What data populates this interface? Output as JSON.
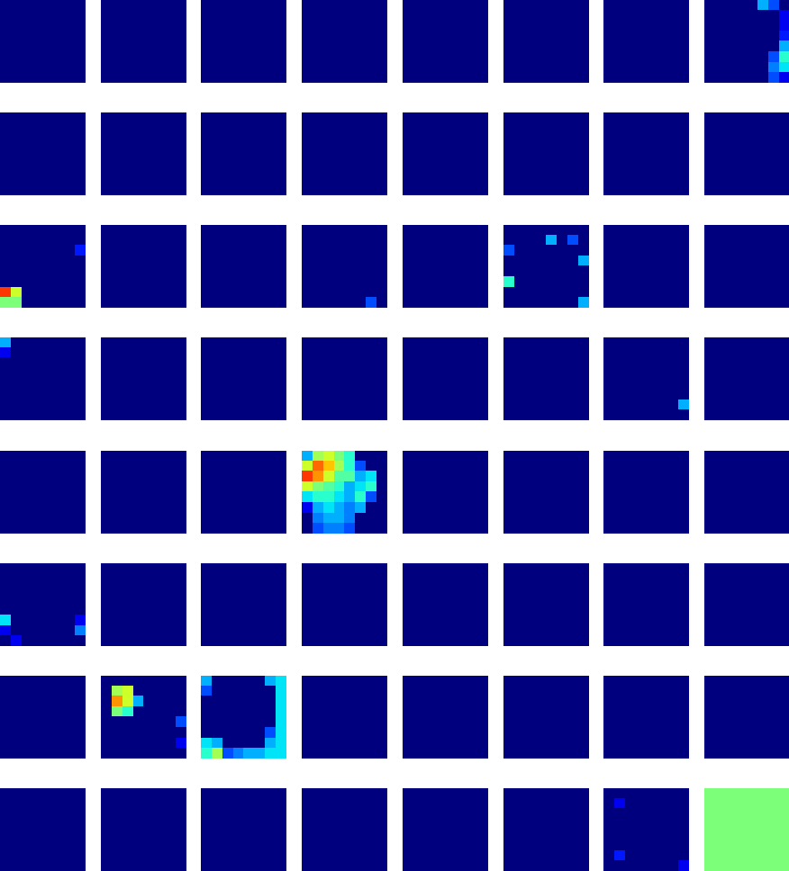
{
  "chart_data": {
    "type": "heatmap_grid",
    "color": "jet",
    "zlim": [
      0,
      1
    ],
    "tick_labels": false,
    "rows": 8,
    "cols": 8,
    "panels": [
      {
        "cells": [
          [
            0
          ]
        ]
      },
      {
        "cells": [
          [
            0
          ]
        ]
      },
      {
        "cells": [
          [
            0
          ]
        ]
      },
      {
        "cells": [
          [
            0
          ]
        ]
      },
      {
        "cells": [
          [
            0
          ]
        ]
      },
      {
        "cells": [
          [
            0
          ]
        ]
      },
      {
        "cells": [
          [
            0
          ]
        ]
      },
      {
        "cells": [
          [
            0,
            0,
            0,
            0,
            0,
            0.3,
            0.2,
            0
          ],
          [
            0,
            0,
            0,
            0,
            0,
            0,
            0,
            0.1
          ],
          [
            0,
            0,
            0,
            0,
            0,
            0,
            0,
            0.1
          ],
          [
            0,
            0,
            0,
            0,
            0,
            0,
            0,
            0.15
          ],
          [
            0,
            0,
            0,
            0,
            0,
            0,
            0,
            0.3
          ],
          [
            0,
            0,
            0,
            0,
            0,
            0,
            0.2,
            0.4
          ],
          [
            0,
            0,
            0,
            0,
            0,
            0,
            0.25,
            0.35
          ],
          [
            0,
            0,
            0,
            0,
            0,
            0,
            0.2,
            0.1
          ]
        ]
      },
      {
        "cells": [
          [
            0
          ]
        ]
      },
      {
        "cells": [
          [
            0
          ]
        ]
      },
      {
        "cells": [
          [
            0
          ]
        ]
      },
      {
        "cells": [
          [
            0
          ]
        ]
      },
      {
        "cells": [
          [
            0
          ]
        ]
      },
      {
        "cells": [
          [
            0
          ]
        ]
      },
      {
        "cells": [
          [
            0
          ]
        ]
      },
      {
        "cells": [
          [
            0
          ]
        ]
      },
      {
        "cells": [
          [
            0,
            0,
            0,
            0,
            0,
            0,
            0,
            0
          ],
          [
            0,
            0,
            0,
            0,
            0,
            0,
            0,
            0
          ],
          [
            0,
            0,
            0,
            0,
            0,
            0,
            0,
            0.15
          ],
          [
            0,
            0,
            0,
            0,
            0,
            0,
            0,
            0
          ],
          [
            0,
            0,
            0,
            0,
            0,
            0,
            0,
            0
          ],
          [
            0,
            0,
            0,
            0,
            0,
            0,
            0,
            0
          ],
          [
            0.85,
            0.6,
            0,
            0,
            0,
            0,
            0,
            0
          ],
          [
            0.5,
            0.5,
            0,
            0,
            0,
            0,
            0,
            0
          ]
        ]
      },
      {
        "cells": [
          [
            0
          ]
        ]
      },
      {
        "cells": [
          [
            0
          ]
        ]
      },
      {
        "cells": [
          [
            0,
            0,
            0,
            0,
            0,
            0,
            0,
            0
          ],
          [
            0,
            0,
            0,
            0,
            0,
            0,
            0,
            0
          ],
          [
            0,
            0,
            0,
            0,
            0,
            0,
            0,
            0
          ],
          [
            0,
            0,
            0,
            0,
            0,
            0,
            0,
            0
          ],
          [
            0,
            0,
            0,
            0,
            0,
            0,
            0,
            0
          ],
          [
            0,
            0,
            0,
            0,
            0,
            0,
            0,
            0
          ],
          [
            0,
            0,
            0,
            0,
            0,
            0,
            0,
            0
          ],
          [
            0,
            0,
            0,
            0,
            0,
            0,
            0.2,
            0
          ]
        ]
      },
      {
        "cells": [
          [
            0
          ]
        ]
      },
      {
        "cells": [
          [
            0,
            0,
            0,
            0,
            0,
            0,
            0,
            0
          ],
          [
            0,
            0,
            0,
            0,
            0.3,
            0,
            0.2,
            0
          ],
          [
            0.2,
            0,
            0,
            0,
            0,
            0,
            0,
            0
          ],
          [
            0,
            0,
            0,
            0,
            0,
            0,
            0,
            0.3
          ],
          [
            0,
            0,
            0,
            0,
            0,
            0,
            0,
            0
          ],
          [
            0.4,
            0,
            0,
            0,
            0,
            0,
            0,
            0
          ],
          [
            0,
            0,
            0,
            0,
            0,
            0,
            0,
            0
          ],
          [
            0,
            0,
            0,
            0,
            0,
            0,
            0,
            0.3
          ]
        ]
      },
      {
        "cells": [
          [
            0
          ]
        ]
      },
      {
        "cells": [
          [
            0
          ]
        ]
      },
      {
        "cells": [
          [
            0.3,
            0,
            0,
            0,
            0,
            0,
            0,
            0
          ],
          [
            0.1,
            0,
            0,
            0,
            0,
            0,
            0,
            0
          ],
          [
            0,
            0,
            0,
            0,
            0,
            0,
            0,
            0
          ],
          [
            0,
            0,
            0,
            0,
            0,
            0,
            0,
            0
          ],
          [
            0,
            0,
            0,
            0,
            0,
            0,
            0,
            0
          ],
          [
            0,
            0,
            0,
            0,
            0,
            0,
            0,
            0
          ],
          [
            0,
            0,
            0,
            0,
            0,
            0,
            0,
            0
          ],
          [
            0,
            0,
            0,
            0,
            0,
            0,
            0,
            0
          ]
        ]
      },
      {
        "cells": [
          [
            0
          ]
        ]
      },
      {
        "cells": [
          [
            0
          ]
        ]
      },
      {
        "cells": [
          [
            0
          ]
        ]
      },
      {
        "cells": [
          [
            0
          ]
        ]
      },
      {
        "cells": [
          [
            0
          ]
        ]
      },
      {
        "cells": [
          [
            0,
            0,
            0,
            0,
            0,
            0,
            0,
            0
          ],
          [
            0,
            0,
            0,
            0,
            0,
            0,
            0,
            0
          ],
          [
            0,
            0,
            0,
            0,
            0,
            0,
            0,
            0
          ],
          [
            0,
            0,
            0,
            0,
            0,
            0,
            0,
            0
          ],
          [
            0,
            0,
            0,
            0,
            0,
            0,
            0,
            0
          ],
          [
            0,
            0,
            0,
            0,
            0,
            0,
            0,
            0
          ],
          [
            0,
            0,
            0,
            0,
            0,
            0,
            0,
            0.3
          ],
          [
            0,
            0,
            0,
            0,
            0,
            0,
            0,
            0
          ]
        ]
      },
      {
        "cells": [
          [
            0
          ]
        ]
      },
      {
        "cells": [
          [
            0
          ]
        ]
      },
      {
        "cells": [
          [
            0
          ]
        ]
      },
      {
        "cells": [
          [
            0
          ]
        ]
      },
      {
        "cells": [
          [
            0.3,
            0.55,
            0.6,
            0.5,
            0.4,
            0.0,
            0,
            0
          ],
          [
            0.6,
            0.8,
            0.7,
            0.55,
            0.4,
            0.2,
            0,
            0
          ],
          [
            0.85,
            0.75,
            0.6,
            0.45,
            0.45,
            0.3,
            0.35,
            0
          ],
          [
            0.6,
            0.5,
            0.45,
            0.4,
            0.3,
            0.35,
            0.4,
            0
          ],
          [
            0.35,
            0.4,
            0.4,
            0.35,
            0.3,
            0.4,
            0.2,
            0
          ],
          [
            0.1,
            0.3,
            0.35,
            0.3,
            0.25,
            0.3,
            0,
            0
          ],
          [
            0,
            0.25,
            0.3,
            0.3,
            0.25,
            0,
            0,
            0
          ],
          [
            0,
            0.2,
            0.25,
            0.25,
            0.2,
            0,
            0,
            0
          ]
        ]
      },
      {
        "cells": [
          [
            0
          ]
        ]
      },
      {
        "cells": [
          [
            0
          ]
        ]
      },
      {
        "cells": [
          [
            0
          ]
        ]
      },
      {
        "cells": [
          [
            0
          ]
        ]
      },
      {
        "cells": [
          [
            0,
            0,
            0,
            0,
            0,
            0,
            0,
            0
          ],
          [
            0,
            0,
            0,
            0,
            0,
            0,
            0,
            0
          ],
          [
            0,
            0,
            0,
            0,
            0,
            0,
            0,
            0
          ],
          [
            0,
            0,
            0,
            0,
            0,
            0,
            0,
            0
          ],
          [
            0,
            0,
            0,
            0,
            0,
            0,
            0,
            0
          ],
          [
            0.35,
            0,
            0,
            0,
            0,
            0,
            0,
            0.1
          ],
          [
            0.1,
            0,
            0,
            0,
            0,
            0,
            0,
            0.25
          ],
          [
            0,
            0.1,
            0,
            0,
            0,
            0,
            0,
            0
          ]
        ]
      },
      {
        "cells": [
          [
            0
          ]
        ]
      },
      {
        "cells": [
          [
            0
          ]
        ]
      },
      {
        "cells": [
          [
            0
          ]
        ]
      },
      {
        "cells": [
          [
            0
          ]
        ]
      },
      {
        "cells": [
          [
            0
          ]
        ]
      },
      {
        "cells": [
          [
            0
          ]
        ]
      },
      {
        "cells": [
          [
            0
          ]
        ]
      },
      {
        "cells": [
          [
            0
          ]
        ]
      },
      {
        "cells": [
          [
            0,
            0,
            0,
            0,
            0,
            0,
            0,
            0
          ],
          [
            0,
            0.55,
            0.6,
            0,
            0,
            0,
            0,
            0
          ],
          [
            0,
            0.75,
            0.6,
            0.3,
            0,
            0,
            0,
            0
          ],
          [
            0,
            0.5,
            0.4,
            0,
            0,
            0,
            0,
            0
          ],
          [
            0,
            0,
            0,
            0,
            0,
            0,
            0,
            0.2
          ],
          [
            0,
            0,
            0,
            0,
            0,
            0,
            0,
            0
          ],
          [
            0,
            0,
            0,
            0,
            0,
            0,
            0,
            0.1
          ],
          [
            0,
            0,
            0,
            0,
            0,
            0,
            0,
            0
          ]
        ]
      },
      {
        "cells": [
          [
            0.3,
            0,
            0,
            0,
            0,
            0,
            0.3,
            0.35
          ],
          [
            0.2,
            0,
            0,
            0,
            0,
            0,
            0,
            0.35
          ],
          [
            0,
            0,
            0,
            0,
            0,
            0,
            0,
            0.35
          ],
          [
            0,
            0,
            0,
            0,
            0,
            0,
            0,
            0.35
          ],
          [
            0,
            0,
            0,
            0,
            0,
            0,
            0,
            0.35
          ],
          [
            0,
            0,
            0,
            0,
            0,
            0,
            0.2,
            0.35
          ],
          [
            0.35,
            0.3,
            0,
            0,
            0,
            0,
            0.3,
            0.35
          ],
          [
            0.4,
            0.55,
            0.2,
            0.25,
            0.3,
            0.3,
            0.35,
            0.35
          ]
        ]
      },
      {
        "cells": [
          [
            0
          ]
        ]
      },
      {
        "cells": [
          [
            0
          ]
        ]
      },
      {
        "cells": [
          [
            0
          ]
        ]
      },
      {
        "cells": [
          [
            0
          ]
        ]
      },
      {
        "cells": [
          [
            0
          ]
        ]
      },
      {
        "cells": [
          [
            0
          ]
        ]
      },
      {
        "cells": [
          [
            0
          ]
        ]
      },
      {
        "cells": [
          [
            0
          ]
        ]
      },
      {
        "cells": [
          [
            0
          ]
        ]
      },
      {
        "cells": [
          [
            0
          ]
        ]
      },
      {
        "cells": [
          [
            0
          ]
        ]
      },
      {
        "cells": [
          [
            0,
            0,
            0,
            0,
            0,
            0,
            0,
            0
          ],
          [
            0,
            0.1,
            0,
            0,
            0,
            0,
            0,
            0
          ],
          [
            0,
            0,
            0,
            0,
            0,
            0,
            0,
            0
          ],
          [
            0,
            0,
            0,
            0,
            0,
            0,
            0,
            0
          ],
          [
            0,
            0,
            0,
            0,
            0,
            0,
            0,
            0
          ],
          [
            0,
            0,
            0,
            0,
            0,
            0,
            0,
            0
          ],
          [
            0,
            0.15,
            0,
            0,
            0,
            0,
            0,
            0
          ],
          [
            0,
            0,
            0,
            0,
            0,
            0,
            0,
            0.1
          ]
        ]
      },
      {
        "cells": [
          [
            0.5
          ]
        ]
      }
    ]
  }
}
